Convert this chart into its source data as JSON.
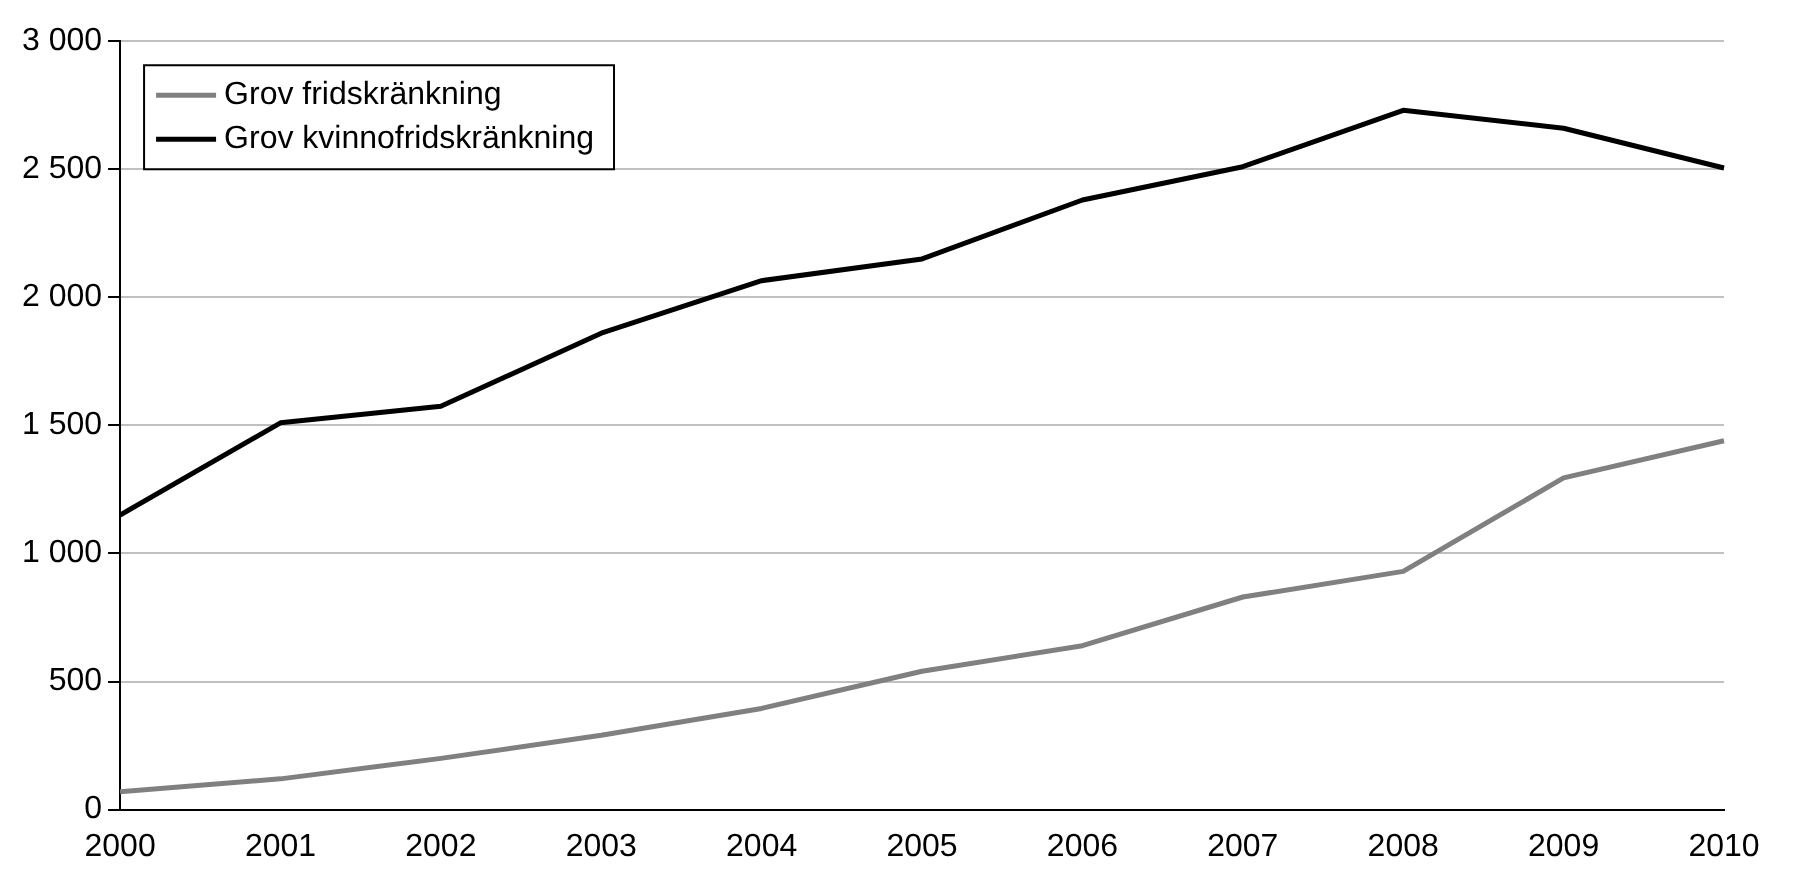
{
  "chart_data": {
    "type": "line",
    "categories": [
      "2000",
      "2001",
      "2002",
      "2003",
      "2004",
      "2005",
      "2006",
      "2007",
      "2008",
      "2009",
      "2010"
    ],
    "series": [
      {
        "name": "Grov fridskränkning",
        "color": "#808080",
        "values": [
          70,
          120,
          200,
          290,
          395,
          540,
          640,
          830,
          930,
          1295,
          1440
        ]
      },
      {
        "name": "Grov kvinnofridskränkning",
        "color": "#000000",
        "values": [
          1150,
          1510,
          1575,
          1860,
          2065,
          2150,
          2380,
          2510,
          2730,
          2660,
          2505
        ]
      }
    ],
    "ylim": [
      0,
      3000
    ],
    "yticks": [
      {
        "value": 0,
        "label": "0"
      },
      {
        "value": 500,
        "label": "500"
      },
      {
        "value": 1000,
        "label": "1 000"
      },
      {
        "value": 1500,
        "label": "1 500"
      },
      {
        "value": 2000,
        "label": "2 000"
      },
      {
        "value": 2500,
        "label": "2 500"
      },
      {
        "value": 3000,
        "label": "3 000"
      }
    ],
    "grid": "y",
    "legend": "top left",
    "marker": "none",
    "line_style": "solid"
  }
}
